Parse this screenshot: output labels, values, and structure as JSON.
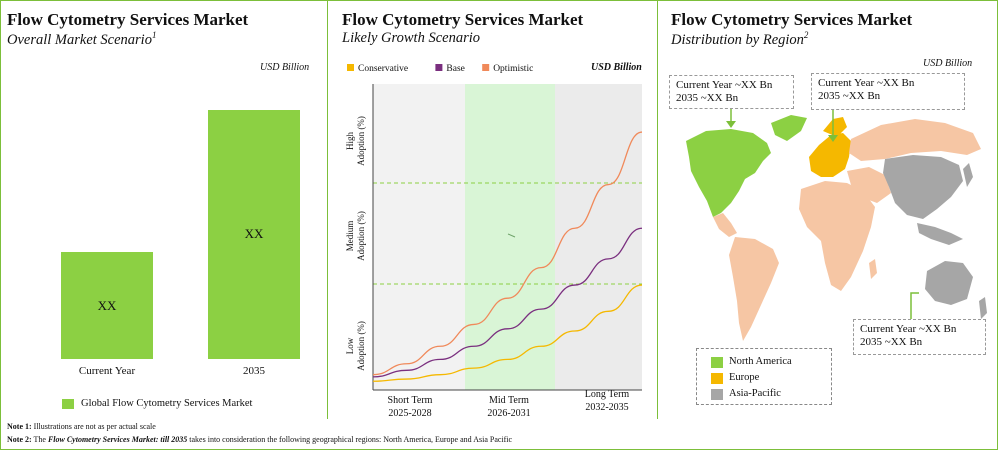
{
  "panels": {
    "overall": {
      "title": "Flow Cytometry Services Market",
      "subtitle": "Overall Market Scenario",
      "subtitle_sup": "1",
      "unit": "USD Billion",
      "legend_label": "Global Flow Cytometry Services Market"
    },
    "growth": {
      "title": "Flow Cytometry Services Market",
      "subtitle": "Likely Growth Scenario",
      "unit": "USD Billion",
      "y_labels": [
        "High Adoption (%)",
        "Medium Adoption (%)",
        "Low Adoption (%)"
      ],
      "periods": [
        {
          "name": "Short Term",
          "years": "2025-2028"
        },
        {
          "name": "Mid Term",
          "years": "2026-2031"
        },
        {
          "name": "Long Term",
          "years": "2032-2035"
        }
      ]
    },
    "region": {
      "title": "Flow Cytometry Services Market",
      "subtitle": "Distribution by Region",
      "subtitle_sup": "2",
      "unit": "USD Billion",
      "callouts": {
        "north_america": {
          "line1": "Current Year ~XX Bn",
          "line2": "2035 ~XX Bn"
        },
        "europe": {
          "line1": "Current Year  ~XX Bn",
          "line2": "2035 ~XX Bn"
        },
        "asia_pacific": {
          "line1": "Current Year ~XX Bn",
          "line2": "2035 ~XX Bn"
        }
      },
      "legend": [
        {
          "label": "North America",
          "color": "#8cd043"
        },
        {
          "label": "Europe",
          "color": "#f5b800"
        },
        {
          "label": "Asia-Pacific",
          "color": "#a6a6a6"
        }
      ],
      "other_color": "#f6c6a4"
    }
  },
  "notes": {
    "note1_label": "Note 1:",
    "note1_text": " Illustrations are not as per actual scale",
    "note2_label": "Note 2:",
    "note2_prefix": " The ",
    "note2_em": "Flow Cytometry Services Market: till 2035",
    "note2_text": " takes into consideration the following geographical regions: North America, Europe and Asia Pacific"
  },
  "chart_data": [
    {
      "type": "bar",
      "categories": [
        "Current Year",
        "2035"
      ],
      "values": [
        30,
        70
      ],
      "data_labels": [
        "XX",
        "XX"
      ],
      "ylim": [
        0,
        80
      ],
      "series": [
        {
          "name": "Global Flow Cytometry Services Market",
          "color": "#8cd043"
        }
      ],
      "grid": false,
      "legend": "bottom"
    },
    {
      "type": "line",
      "x": [
        0,
        1,
        2,
        3,
        4,
        5,
        6,
        7,
        8
      ],
      "series": [
        {
          "name": "Conservative",
          "color": "#f5b800",
          "values": [
            2,
            2.5,
            3.5,
            5,
            7,
            10,
            13.5,
            18,
            24
          ]
        },
        {
          "name": "Base",
          "color": "#7a2f7f",
          "values": [
            3,
            4.5,
            7,
            10,
            14,
            18.5,
            24,
            30,
            37
          ]
        },
        {
          "name": "Optimistic",
          "color": "#f0895a",
          "values": [
            3.5,
            6,
            10,
            15,
            21,
            28,
            37,
            47,
            59
          ]
        }
      ],
      "ylim": [
        0,
        70
      ],
      "legend": "top-left",
      "grid": false
    }
  ]
}
